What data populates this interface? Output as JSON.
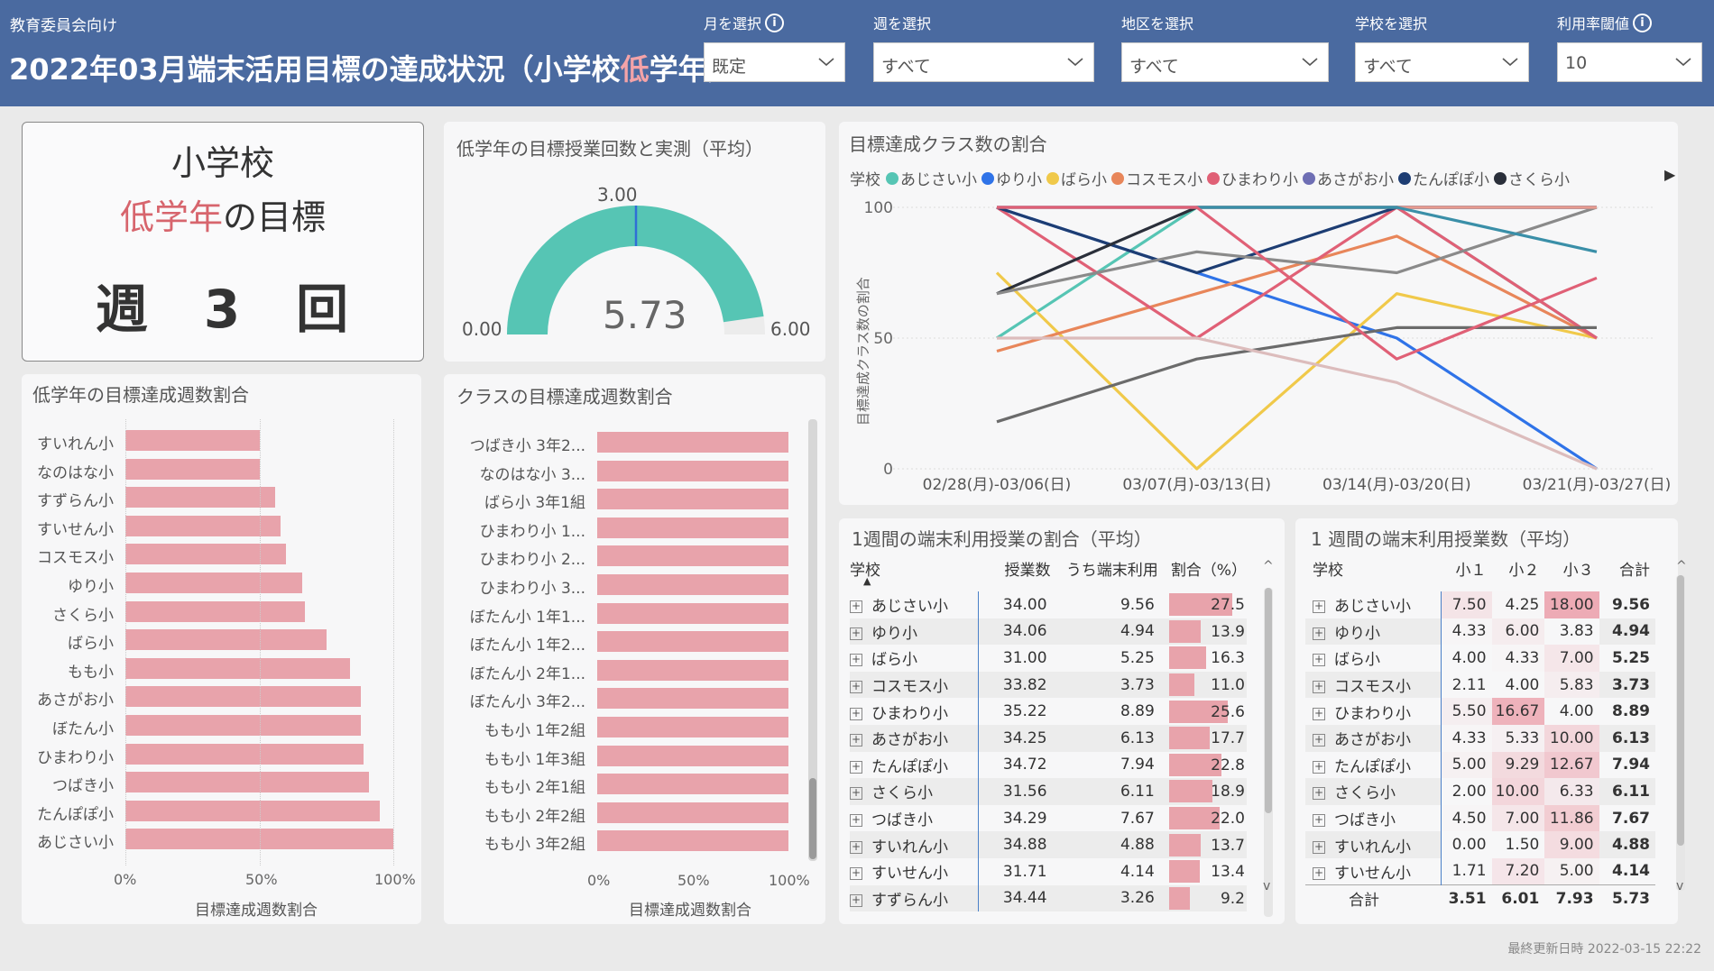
{
  "header": {
    "subtitle": "教育委員会向け",
    "title_pre": "2022年03月端末活用目標の達成状況（小学校",
    "title_hl": "低",
    "title_post": "学年）",
    "filters": [
      {
        "label": "月を選択",
        "value": "既定",
        "info": true
      },
      {
        "label": "週を選択",
        "value": "すべて",
        "info": false
      },
      {
        "label": "地区を選択",
        "value": "すべて",
        "info": false
      },
      {
        "label": "学校を選択",
        "value": "すべて",
        "info": false
      },
      {
        "label": "利用率閾値",
        "value": "10",
        "info": true
      }
    ],
    "info_glyph": "i"
  },
  "goal_card": {
    "line1": "小学校",
    "line2_hl": "低学年",
    "line2_rest": "の目標",
    "line3": "週　3　回"
  },
  "gauge": {
    "title": "低学年の目標授業回数と実測（平均）",
    "min": 0,
    "max": 6,
    "target": 3,
    "value": 5.73,
    "min_label": "0.00",
    "max_label": "6.00",
    "target_label": "3.00",
    "value_label": "5.73",
    "color": "#56c5b4"
  },
  "school_bars": {
    "title": "低学年の目標達成週数割合",
    "xlabel": "目標達成週数割合",
    "ticks": [
      "0%",
      "50%",
      "100%"
    ]
  },
  "class_bars": {
    "title": "クラスの目標達成週数割合",
    "xlabel": "目標達成週数割合",
    "ticks": [
      "0%",
      "50%",
      "100%"
    ]
  },
  "line_chart": {
    "title": "目標達成クラス数の割合",
    "legend_title": "学校",
    "ylabel": "目標達成クラス数の割合",
    "yticks": [
      "100",
      "50",
      "0"
    ]
  },
  "chart_data": [
    {
      "type": "bar",
      "orientation": "horizontal",
      "title": "低学年の目標達成週数割合",
      "xlabel": "目標達成週数割合",
      "xlim": [
        0,
        100
      ],
      "categories": [
        "すいれん小",
        "なのはな小",
        "すずらん小",
        "すいせん小",
        "コスモス小",
        "ゆり小",
        "さくら小",
        "ばら小",
        "もも小",
        "あさがお小",
        "ぼたん小",
        "ひまわり小",
        "つばき小",
        "たんぽぽ小",
        "あじさい小"
      ],
      "values": [
        50,
        50,
        56,
        58,
        60,
        66,
        67,
        75,
        84,
        88,
        88,
        89,
        91,
        95,
        100
      ]
    },
    {
      "type": "bar",
      "orientation": "horizontal",
      "title": "クラスの目標達成週数割合",
      "xlabel": "目標達成週数割合",
      "xlim": [
        0,
        100
      ],
      "categories": [
        "つばき小 3年2...",
        "なのはな小 3...",
        "ばら小 3年1組",
        "ひまわり小 1...",
        "ひまわり小 2...",
        "ひまわり小 3...",
        "ぼたん小 1年1...",
        "ぼたん小 1年2...",
        "ぼたん小 2年1...",
        "ぼたん小 3年2...",
        "もも小 1年2組",
        "もも小 1年3組",
        "もも小 2年1組",
        "もも小 2年2組",
        "もも小 3年2組"
      ],
      "values": [
        100,
        100,
        100,
        100,
        100,
        100,
        100,
        100,
        100,
        100,
        100,
        100,
        100,
        100,
        100
      ]
    },
    {
      "type": "line",
      "title": "目標達成クラス数の割合",
      "ylabel": "目標達成クラス数の割合",
      "ylim": [
        0,
        100
      ],
      "x": [
        "02/28(月)-03/06(日)",
        "03/07(月)-03/13(日)",
        "03/14(月)-03/20(日)",
        "03/21(月)-03/27(日)"
      ],
      "series": [
        {
          "name": "あじさい小",
          "color": "#56c5b4",
          "values": [
            50,
            100,
            100,
            50
          ]
        },
        {
          "name": "ゆり小",
          "color": "#2f73e8",
          "values": [
            100,
            75,
            50,
            0
          ]
        },
        {
          "name": "ばら小",
          "color": "#f0c94a",
          "values": [
            75,
            0,
            67,
            50
          ]
        },
        {
          "name": "コスモス小",
          "color": "#e8865a",
          "values": [
            45,
            67,
            89,
            50
          ]
        },
        {
          "name": "ひまわり小",
          "color": "#e06076",
          "values": [
            100,
            50,
            100,
            50
          ]
        },
        {
          "name": "あさがお小",
          "color": "#6e6eb4",
          "values": [
            100,
            100,
            100,
            100
          ]
        },
        {
          "name": "たんぽぽ小",
          "color": "#1d3d73",
          "values": [
            100,
            75,
            100,
            100
          ]
        },
        {
          "name": "さくら小",
          "color": "#2a2f3a",
          "values": [
            67,
            100,
            100,
            100
          ]
        },
        {
          "name": "",
          "color": "#6b6b6b",
          "values": [
            18,
            42,
            54,
            54
          ]
        },
        {
          "name": "",
          "color": "#8a8a8a",
          "values": [
            67,
            83,
            75,
            100
          ]
        },
        {
          "name": "",
          "color": "#e79a8f",
          "values": [
            100,
            100,
            100,
            100
          ]
        },
        {
          "name": "",
          "color": "#3a8fa8",
          "values": [
            100,
            100,
            100,
            83
          ]
        },
        {
          "name": "",
          "color": "#e06076",
          "values": [
            100,
            100,
            42,
            73
          ]
        },
        {
          "name": "",
          "color": "#dcbcbc",
          "values": [
            50,
            50,
            33,
            0
          ]
        }
      ]
    }
  ],
  "table1": {
    "title": "1週間の端末利用授業の割合（平均）",
    "headers": [
      "学校",
      "授業数",
      "うち端末利用",
      "割合（%）"
    ],
    "sort_icon": "▲",
    "expand_glyph": "+",
    "scroll_up": "^",
    "scroll_down": "v",
    "rows": [
      [
        "あじさい小",
        "34.00",
        "9.56",
        "27.5"
      ],
      [
        "ゆり小",
        "34.06",
        "4.94",
        "13.9"
      ],
      [
        "ばら小",
        "31.00",
        "5.25",
        "16.3"
      ],
      [
        "コスモス小",
        "33.82",
        "3.73",
        "11.0"
      ],
      [
        "ひまわり小",
        "35.22",
        "8.89",
        "25.6"
      ],
      [
        "あさがお小",
        "34.25",
        "6.13",
        "17.7"
      ],
      [
        "たんぽぽ小",
        "34.72",
        "7.94",
        "22.8"
      ],
      [
        "さくら小",
        "31.56",
        "6.11",
        "18.9"
      ],
      [
        "つばき小",
        "34.29",
        "7.67",
        "22.0"
      ],
      [
        "すいれん小",
        "34.88",
        "4.88",
        "13.7"
      ],
      [
        "すいせん小",
        "31.71",
        "4.14",
        "13.4"
      ],
      [
        "すずらん小",
        "34.44",
        "3.26",
        "9.2"
      ]
    ]
  },
  "table2": {
    "title": "1 週間の端末利用授業数（平均）",
    "headers": [
      "学校",
      "小１",
      "小２",
      "小３",
      "合計"
    ],
    "expand_glyph": "+",
    "scroll_up": "^",
    "scroll_down": "v",
    "rows": [
      [
        "あじさい小",
        "7.50",
        "4.25",
        "18.00",
        "9.56"
      ],
      [
        "ゆり小",
        "4.33",
        "6.00",
        "3.83",
        "4.94"
      ],
      [
        "ばら小",
        "4.00",
        "4.33",
        "7.00",
        "5.25"
      ],
      [
        "コスモス小",
        "2.11",
        "4.00",
        "5.83",
        "3.73"
      ],
      [
        "ひまわり小",
        "5.50",
        "16.67",
        "4.00",
        "8.89"
      ],
      [
        "あさがお小",
        "4.33",
        "5.33",
        "10.00",
        "6.13"
      ],
      [
        "たんぽぽ小",
        "5.00",
        "9.29",
        "12.67",
        "7.94"
      ],
      [
        "さくら小",
        "2.00",
        "10.00",
        "6.33",
        "6.11"
      ],
      [
        "つばき小",
        "4.50",
        "7.00",
        "11.86",
        "7.67"
      ],
      [
        "すいれん小",
        "0.00",
        "1.50",
        "9.00",
        "4.88"
      ],
      [
        "すいせん小",
        "1.71",
        "7.20",
        "5.00",
        "4.14"
      ]
    ],
    "total": [
      "合計",
      "3.51",
      "6.01",
      "7.93",
      "5.73"
    ]
  },
  "footer": "最終更新日時 2022-03-15 22:22"
}
